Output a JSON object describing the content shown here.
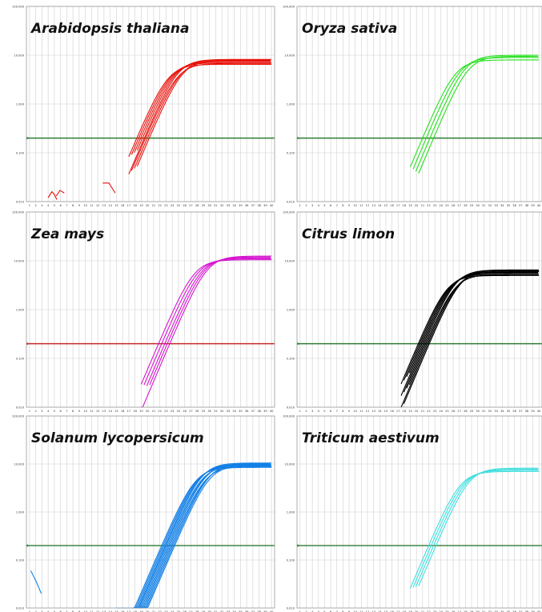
{
  "figure": {
    "background": "#ffffff",
    "grid_color": "#cfcfcf",
    "frame_color": "#9a9a9a"
  },
  "chart_data": [
    {
      "type": "line",
      "title": "Arabidopsis thaliana",
      "color": "#e8120c",
      "threshold": 0.2,
      "threshold_color": "#2e7d32",
      "ylim": [
        0.01,
        100
      ],
      "yscale": "log",
      "y_ticks": [
        "0.010",
        "0.100",
        "1.000",
        "10.000",
        "100.000"
      ],
      "x_ticks": [
        "1",
        "2",
        "3",
        "4",
        "5",
        "6",
        "7",
        "8",
        "9",
        "10",
        "11",
        "12",
        "13",
        "14",
        "15",
        "16",
        "17",
        "18",
        "19",
        "20",
        "21",
        "22",
        "23",
        "24",
        "25",
        "26",
        "27",
        "28",
        "29",
        "30",
        "31",
        "32",
        "33",
        "34",
        "35",
        "36",
        "37",
        "38",
        "39",
        "40"
      ],
      "curve_model": {
        "ct_values": [
          18.3,
          18.6,
          18.9,
          19.2,
          19.5,
          19.7,
          20.0,
          20.3
        ],
        "plateau_values": [
          6.5,
          7.0,
          7.4,
          7.8,
          8.2,
          6.8,
          7.6,
          8.0
        ],
        "start_cycle": 17
      },
      "noise_segments": [
        {
          "x": [
            4,
            4.6,
            5,
            5.4
          ],
          "y": [
            0.012,
            0.016,
            0.014,
            0.011
          ]
        },
        {
          "x": [
            5.3,
            5.9,
            6.6
          ],
          "y": [
            0.013,
            0.017,
            0.015
          ]
        },
        {
          "x": [
            12.8,
            13.8,
            14.8
          ],
          "y": [
            0.024,
            0.024,
            0.015
          ]
        }
      ]
    },
    {
      "type": "line",
      "title": "Oryza sativa",
      "color": "#22e01a",
      "threshold": 0.2,
      "threshold_color": "#2e7d32",
      "ylim": [
        0.01,
        100
      ],
      "yscale": "log",
      "y_ticks": [
        "0.010",
        "0.100",
        "1.000",
        "10.000",
        "100.000"
      ],
      "x_ticks": [
        "1",
        "2",
        "3",
        "4",
        "5",
        "6",
        "7",
        "8",
        "9",
        "10",
        "11",
        "12",
        "13",
        "14",
        "15",
        "16",
        "17",
        "18",
        "19",
        "20",
        "21",
        "22",
        "23",
        "24",
        "25",
        "26",
        "27",
        "28",
        "29",
        "30",
        "31",
        "32",
        "33",
        "34",
        "35",
        "36",
        "37",
        "38",
        "39",
        "40"
      ],
      "curve_model": {
        "ct_values": [
          21.0,
          21.6,
          22.2,
          22.8
        ],
        "plateau_values": [
          8.0,
          9.0,
          10.0,
          9.5
        ],
        "start_cycle": 19
      },
      "noise_segments": []
    },
    {
      "type": "line",
      "title": "Zea mays",
      "color": "#d514d0",
      "threshold": 0.2,
      "threshold_color": "#c62828",
      "ylim": [
        0.01,
        100
      ],
      "yscale": "log",
      "y_ticks": [
        "0.010",
        "0.100",
        "1.000",
        "10.000",
        "100.000"
      ],
      "x_ticks": [
        "1",
        "2",
        "3",
        "4",
        "5",
        "6",
        "7",
        "8",
        "9",
        "10",
        "11",
        "12",
        "13",
        "14",
        "15",
        "16",
        "17",
        "18",
        "19",
        "20",
        "21",
        "22",
        "23",
        "24",
        "25",
        "26",
        "27",
        "28",
        "29",
        "30",
        "31",
        "32",
        "33",
        "34",
        "35",
        "36",
        "37",
        "38",
        "39",
        "40"
      ],
      "curve_model": {
        "ct_values": [
          21.8,
          22.3,
          22.8,
          23.2,
          23.6
        ],
        "plateau_values": [
          10.5,
          11.0,
          11.5,
          12.0,
          12.5
        ],
        "start_cycle": 19
      },
      "noise_segments": []
    },
    {
      "type": "line",
      "title": "Citrus limon",
      "color": "#000000",
      "threshold": 0.2,
      "threshold_color": "#2e7d32",
      "ylim": [
        0.01,
        100
      ],
      "yscale": "log",
      "y_ticks": [
        "0.010",
        "0.100",
        "1.000",
        "10.000",
        "100.000"
      ],
      "x_ticks": [
        "1",
        "2",
        "3",
        "4",
        "5",
        "6",
        "7",
        "8",
        "9",
        "10",
        "11",
        "12",
        "13",
        "14",
        "15",
        "16",
        "17",
        "18",
        "19",
        "20",
        "21",
        "22",
        "23",
        "24",
        "25",
        "26",
        "27",
        "28",
        "29",
        "30",
        "31",
        "32",
        "33",
        "34",
        "35",
        "36",
        "37",
        "38",
        "39",
        "40"
      ],
      "curve_model": {
        "ct_values": [
          20.3,
          20.5,
          20.7,
          20.9,
          21.1,
          21.3,
          21.5,
          21.7,
          21.9,
          22.1
        ],
        "plateau_values": [
          5.0,
          5.3,
          5.6,
          5.9,
          6.2,
          6.5,
          5.2,
          5.8,
          6.0,
          6.4
        ],
        "start_cycle": 17.5
      },
      "noise_segments": []
    },
    {
      "type": "line",
      "title": "Solanum lycopersicum",
      "color": "#1380e6",
      "threshold": 0.2,
      "threshold_color": "#2e7d32",
      "ylim": [
        0.01,
        100
      ],
      "yscale": "log",
      "y_ticks": [
        "0.010",
        "0.100",
        "1.000",
        "10.000",
        "100.000"
      ],
      "x_ticks": [
        "1",
        "2",
        "3",
        "4",
        "5",
        "6",
        "7",
        "8",
        "9",
        "10",
        "11",
        "12",
        "13",
        "14",
        "15",
        "16",
        "17",
        "18",
        "19",
        "20",
        "21",
        "22",
        "23",
        "24",
        "25",
        "26",
        "27",
        "28",
        "29",
        "30",
        "31",
        "32",
        "33",
        "34",
        "35",
        "36",
        "37",
        "38",
        "39",
        "40"
      ],
      "curve_model": {
        "ct_values": [
          22.3,
          22.5,
          22.7,
          22.9,
          23.0,
          23.2,
          23.4,
          23.6,
          23.8,
          24.0,
          24.2,
          24.4
        ],
        "plateau_values": [
          8.5,
          9.0,
          9.5,
          10.0,
          10.5,
          9.2,
          9.8,
          10.2,
          8.8,
          9.6,
          10.4,
          9.4
        ],
        "start_cycle": 15
      },
      "noise_segments": [
        {
          "x": [
            1.2,
            2.1,
            2.9
          ],
          "y": [
            0.06,
            0.035,
            0.02
          ]
        }
      ]
    },
    {
      "type": "line",
      "title": "Triticum aestivum",
      "color": "#3fdede",
      "threshold": 0.2,
      "threshold_color": "#2e7d32",
      "ylim": [
        0.01,
        100
      ],
      "yscale": "log",
      "y_ticks": [
        "0.010",
        "0.100",
        "1.000",
        "10.000",
        "100.000"
      ],
      "x_ticks": [
        "1",
        "2",
        "3",
        "4",
        "5",
        "6",
        "7",
        "8",
        "9",
        "10",
        "11",
        "12",
        "13",
        "14",
        "15",
        "16",
        "17",
        "18",
        "19",
        "20",
        "21",
        "22",
        "23",
        "24",
        "25",
        "26",
        "27",
        "28",
        "29",
        "30",
        "31",
        "32",
        "33",
        "34",
        "35",
        "36",
        "37",
        "38",
        "39",
        "40"
      ],
      "curve_model": {
        "ct_values": [
          22.0,
          22.4,
          22.8,
          23.2
        ],
        "plateau_values": [
          7.0,
          7.4,
          7.8,
          8.2
        ],
        "start_cycle": 19
      },
      "noise_segments": []
    }
  ]
}
